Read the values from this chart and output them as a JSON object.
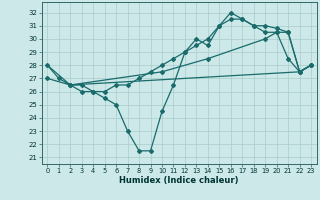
{
  "xlabel": "Humidex (Indice chaleur)",
  "background_color": "#cce8e8",
  "grid_color": "#aacccc",
  "line_color": "#1a6b6b",
  "xlim": [
    -0.5,
    23.5
  ],
  "ylim": [
    20.5,
    32.8
  ],
  "yticks": [
    21,
    22,
    23,
    24,
    25,
    26,
    27,
    28,
    29,
    30,
    31,
    32
  ],
  "xticks": [
    0,
    1,
    2,
    3,
    4,
    5,
    6,
    7,
    8,
    9,
    10,
    11,
    12,
    13,
    14,
    15,
    16,
    17,
    18,
    19,
    20,
    21,
    22,
    23
  ],
  "series": [
    {
      "x": [
        0,
        1,
        2,
        3,
        4,
        5,
        6,
        7,
        8,
        9,
        10,
        11,
        12,
        13,
        14,
        15,
        16,
        17,
        18,
        19,
        20,
        21,
        22,
        23
      ],
      "y": [
        28,
        27,
        26.5,
        26,
        26,
        25.5,
        25,
        23,
        21.5,
        21.5,
        24.5,
        26.5,
        29,
        30.0,
        29.5,
        31.0,
        32.0,
        31.5,
        31.0,
        30.5,
        30.5,
        28.5,
        27.5,
        28
      ]
    },
    {
      "x": [
        0,
        2,
        22,
        23
      ],
      "y": [
        28,
        26.5,
        27.5,
        28
      ]
    },
    {
      "x": [
        0,
        2,
        10,
        14,
        19,
        20,
        21,
        22,
        23
      ],
      "y": [
        27,
        26.5,
        27.5,
        28.5,
        30.0,
        30.5,
        30.5,
        27.5,
        28
      ]
    },
    {
      "x": [
        2,
        3,
        4,
        5,
        6,
        7,
        8,
        9,
        10,
        11,
        12,
        13,
        14,
        15,
        16,
        17,
        18,
        19,
        20,
        21,
        22,
        23
      ],
      "y": [
        26.5,
        26.5,
        26.0,
        26.0,
        26.5,
        26.5,
        27.0,
        27.5,
        28.0,
        28.5,
        29.0,
        29.5,
        30.0,
        31.0,
        31.5,
        31.5,
        31.0,
        31.0,
        30.8,
        30.5,
        27.5,
        28
      ]
    }
  ]
}
